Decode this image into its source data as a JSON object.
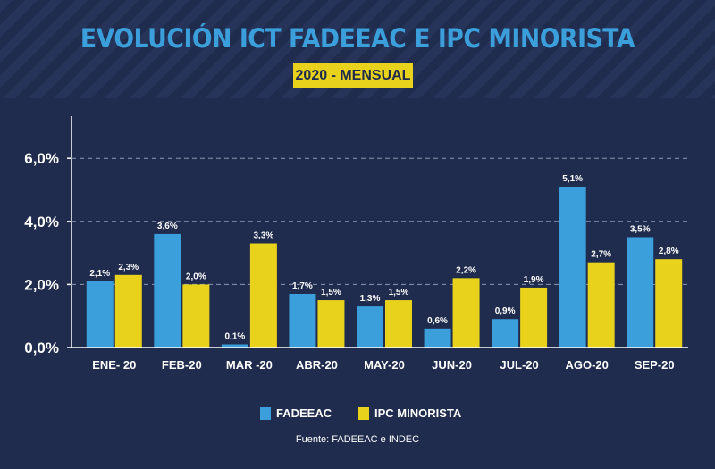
{
  "title": "EVOLUCIÓN ICT FADEEAC E IPC MINORISTA",
  "subtitle": "2020 - MENSUAL",
  "source": "Fuente: FADEEAC e INDEC",
  "colors": {
    "background": "#1f2c4d",
    "fadeeac": "#3b9fdc",
    "ipc": "#e8d21b",
    "text": "#ffffff"
  },
  "chart_data": {
    "type": "bar",
    "categories": [
      "ENE- 20",
      "FEB-20",
      "MAR -20",
      "ABR-20",
      "MAY-20",
      "JUN-20",
      "JUL-20",
      "AGO-20",
      "SEP-20"
    ],
    "series": [
      {
        "name": "FADEEAC",
        "values": [
          2.1,
          3.6,
          0.1,
          1.7,
          1.3,
          0.6,
          0.9,
          5.1,
          3.5
        ],
        "labels": [
          "2,1%",
          "3,6%",
          "0,1%",
          "1,7%",
          "1,3%",
          "0,6%",
          "0,9%",
          "5,1%",
          "3,5%"
        ]
      },
      {
        "name": "IPC MINORISTA",
        "values": [
          2.3,
          2.0,
          3.3,
          1.5,
          1.5,
          2.2,
          1.9,
          2.7,
          2.8
        ],
        "labels": [
          "2,3%",
          "2,0%",
          "3,3%",
          "1,5%",
          "1,5%",
          "2,2%",
          "1,9%",
          "2,7%",
          "2,8%"
        ]
      }
    ],
    "y_ticks": [
      {
        "value": 0,
        "label": "0,0%"
      },
      {
        "value": 2,
        "label": "2,0%"
      },
      {
        "value": 4,
        "label": "4,0%"
      },
      {
        "value": 6,
        "label": "6,0%"
      }
    ],
    "ylim": [
      0,
      7.5
    ],
    "grid": true,
    "legend_position": "bottom"
  }
}
